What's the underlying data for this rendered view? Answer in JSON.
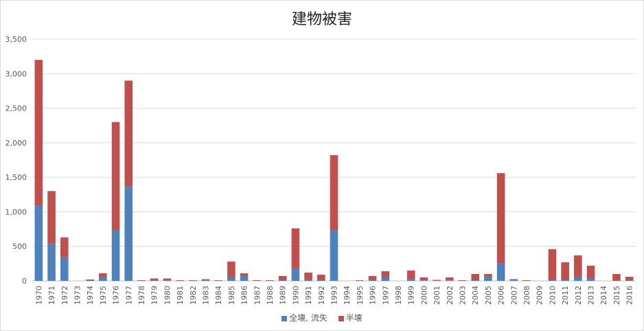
{
  "chart_data": {
    "type": "bar",
    "stacked": true,
    "title": "建物被害",
    "xlabel": "",
    "ylabel": "",
    "ylim": [
      0,
      3500
    ],
    "yticks": [
      0,
      500,
      1000,
      1500,
      2000,
      2500,
      3000,
      3500
    ],
    "ytick_labels": [
      "0",
      "500",
      "1,000",
      "1,500",
      "2,000",
      "2,500",
      "3,000",
      "3,500"
    ],
    "grid": true,
    "legend_position": "bottom",
    "categories": [
      "1970",
      "1971",
      "1972",
      "1973",
      "1974",
      "1975",
      "1976",
      "1977",
      "1978",
      "1979",
      "1980",
      "1981",
      "1982",
      "1983",
      "1984",
      "1985",
      "1986",
      "1987",
      "1988",
      "1989",
      "1990",
      "1991",
      "1992",
      "1993",
      "1994",
      "1995",
      "1996",
      "1997",
      "1998",
      "1999",
      "2000",
      "2001",
      "2002",
      "2003",
      "2004",
      "2005",
      "2006",
      "2007",
      "2008",
      "2009",
      "2010",
      "2011",
      "2012",
      "2013",
      "2014",
      "2015",
      "2016"
    ],
    "series": [
      {
        "name": "全壊, 流失",
        "color": "#4f81bd",
        "values": [
          1090,
          540,
          340,
          0,
          5,
          60,
          730,
          1360,
          3,
          10,
          10,
          3,
          2,
          12,
          2,
          55,
          70,
          2,
          2,
          10,
          180,
          15,
          10,
          730,
          0,
          3,
          10,
          50,
          0,
          25,
          8,
          3,
          8,
          2,
          10,
          60,
          250,
          15,
          2,
          0,
          10,
          10,
          60,
          30,
          0,
          5,
          5
        ]
      },
      {
        "name": "半壊",
        "color": "#c0504d",
        "values": [
          2110,
          760,
          290,
          0,
          15,
          50,
          1570,
          1540,
          7,
          25,
          25,
          7,
          8,
          13,
          8,
          225,
          40,
          8,
          8,
          60,
          580,
          105,
          80,
          1090,
          0,
          7,
          60,
          90,
          0,
          125,
          42,
          12,
          42,
          8,
          90,
          40,
          1310,
          10,
          8,
          0,
          450,
          260,
          310,
          190,
          0,
          95,
          55
        ]
      }
    ]
  }
}
